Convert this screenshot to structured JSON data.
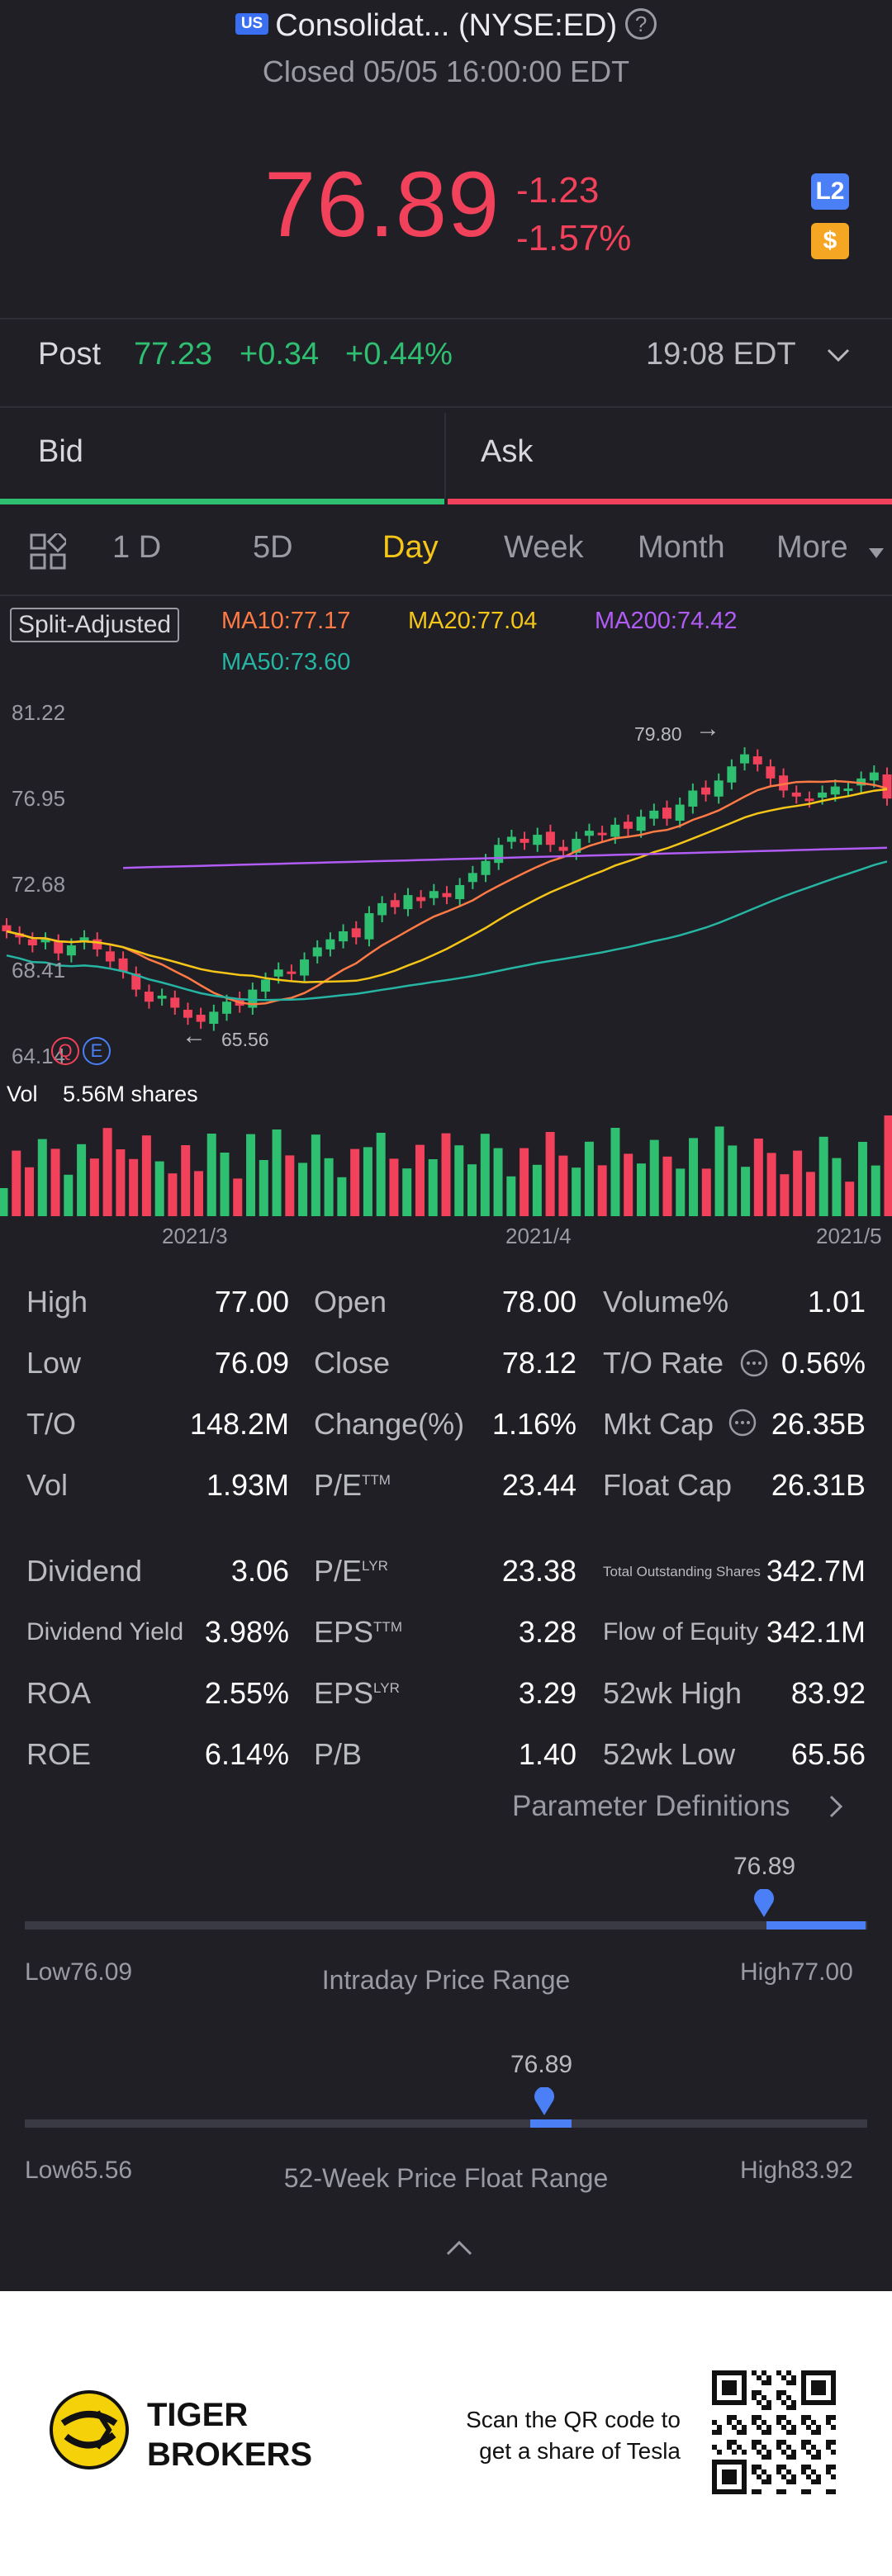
{
  "header": {
    "market_badge": "US",
    "title": "Consolidat... (NYSE:ED)",
    "status": "Closed 05/05 16:00:00 EDT",
    "help_icon": "question-circle-icon"
  },
  "quote": {
    "price": "76.89",
    "change": "-1.23",
    "change_pct": "-1.57%",
    "badge_l2": "L2",
    "badge_dollar": "$",
    "color_down": "#f2415a",
    "color_up": "#2fbf71"
  },
  "post_market": {
    "label": "Post",
    "price": "77.23",
    "change": "+0.34",
    "change_pct": "+0.44%",
    "time": "19:08 EDT"
  },
  "orderbook": {
    "bid_label": "Bid",
    "ask_label": "Ask"
  },
  "tabs": [
    "1 D",
    "5D",
    "Day",
    "Week",
    "Month",
    "More"
  ],
  "active_tab": "Day",
  "chart": {
    "adjust_label": "Split-Adjusted",
    "ma10": "MA10:77.17",
    "ma20": "MA20:77.04",
    "ma200": "MA200:74.42",
    "ma50": "MA50:73.60",
    "y_ticks": [
      "81.22",
      "76.95",
      "72.68",
      "68.41",
      "64.14"
    ],
    "high_label": "79.80",
    "low_label": "65.56",
    "vol_label": "Vol",
    "vol_value": "5.56M shares",
    "x_ticks": [
      "2021/3",
      "2021/4",
      "2021/5"
    ],
    "marker_q": "Q",
    "marker_e": "E"
  },
  "chart_data": {
    "type": "candlestick",
    "y_range": [
      64.14,
      81.22
    ],
    "series": [
      {
        "name": "MA10",
        "color": "#ff7a45"
      },
      {
        "name": "MA20",
        "color": "#f5c518"
      },
      {
        "name": "MA50",
        "color": "#26b5a3"
      },
      {
        "name": "MA200",
        "color": "#b05cf5"
      }
    ],
    "closes": [
      70.3,
      70.0,
      69.6,
      69.9,
      69.2,
      69.6,
      70.0,
      69.4,
      68.8,
      68.3,
      67.4,
      66.8,
      67.1,
      66.5,
      66.0,
      65.8,
      66.3,
      66.8,
      66.6,
      67.4,
      67.9,
      68.4,
      68.2,
      68.9,
      69.5,
      69.9,
      70.3,
      70.0,
      71.2,
      71.7,
      71.5,
      72.1,
      71.8,
      72.3,
      72.0,
      72.6,
      73.2,
      73.8,
      74.6,
      75.0,
      74.7,
      75.1,
      74.6,
      74.3,
      74.9,
      75.3,
      75.1,
      75.6,
      75.4,
      76.0,
      76.3,
      75.9,
      76.6,
      77.3,
      77.1,
      77.8,
      78.5,
      79.1,
      78.6,
      77.9,
      77.3,
      77.0,
      76.8,
      77.2,
      77.5,
      77.4,
      77.9,
      78.2,
      76.9
    ]
  },
  "stats": [
    [
      {
        "label": "High",
        "value": "77.00"
      },
      {
        "label": "Open",
        "value": "78.00"
      },
      {
        "label": "Volume%",
        "value": "1.01"
      }
    ],
    [
      {
        "label": "Low",
        "value": "76.09"
      },
      {
        "label": "Close",
        "value": "78.12"
      },
      {
        "label": "T/O Rate",
        "value": "0.56%"
      }
    ],
    [
      {
        "label": "T/O",
        "value": "148.2M"
      },
      {
        "label": "Change(%)",
        "value": "1.16%"
      },
      {
        "label": "Mkt Cap",
        "value": "26.35B"
      }
    ],
    [
      {
        "label": "Vol",
        "value": "1.93M"
      },
      {
        "label": "P/E",
        "sup": "TTM",
        "value": "23.44"
      },
      {
        "label": "Float Cap",
        "value": "26.31B"
      }
    ],
    [
      {
        "label": "Dividend",
        "value": "3.06"
      },
      {
        "label": "P/E",
        "sup": "LYR",
        "value": "23.38"
      },
      {
        "label": "Total Outstanding Shares",
        "value": "342.7M"
      }
    ],
    [
      {
        "label": "Dividend Yield",
        "value": "3.98%"
      },
      {
        "label": "EPS",
        "sup": "TTM",
        "value": "3.28"
      },
      {
        "label": "Flow of Equity",
        "value": "342.1M"
      }
    ],
    [
      {
        "label": "ROA",
        "value": "2.55%"
      },
      {
        "label": "EPS",
        "sup": "LYR",
        "value": "3.29"
      },
      {
        "label": "52wk High",
        "value": "83.92"
      }
    ],
    [
      {
        "label": "ROE",
        "value": "6.14%"
      },
      {
        "label": "P/B",
        "value": "1.40"
      },
      {
        "label": "52wk Low",
        "value": "65.56"
      }
    ]
  ],
  "param_link": "Parameter Definitions",
  "ranges": {
    "intraday": {
      "current": "76.89",
      "low": "Low76.09",
      "high": "High77.00",
      "title": "Intraday Price Range",
      "fill_fraction": 0.88
    },
    "week52": {
      "current": "76.89",
      "low": "Low65.56",
      "high": "High83.92",
      "title": "52-Week Price Float Range",
      "fill_fraction": 0.62
    }
  },
  "footer": {
    "brand_line1": "TIGER",
    "brand_line2": "BROKERS",
    "promo_line1": "Scan the QR code to",
    "promo_line2": "get a share of Tesla"
  }
}
